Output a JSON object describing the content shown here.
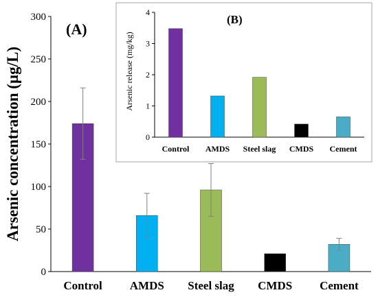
{
  "chart_data": [
    {
      "type": "bar",
      "panel_label": "(A)",
      "ylabel": "Arsenic concentration (µg/L)",
      "categories": [
        "Control",
        "AMDS",
        "Steel slag",
        "CMDS",
        "Cement"
      ],
      "values": [
        174,
        66,
        96,
        21,
        32
      ],
      "error": [
        42,
        26,
        31,
        0,
        7
      ],
      "colors": [
        "#7030a0",
        "#00b0f0",
        "#9bbb59",
        "#000000",
        "#4bacc6"
      ],
      "ylim": [
        0,
        300
      ],
      "yticks": [
        0,
        50,
        100,
        150,
        200,
        250,
        300
      ],
      "grid": false
    },
    {
      "type": "bar",
      "panel_label": "(B)",
      "ylabel": "Arsenic release (mg/kg)",
      "categories": [
        "Control",
        "AMDS",
        "Steel slag",
        "CMDS",
        "Cement"
      ],
      "values": [
        3.48,
        1.32,
        1.92,
        0.42,
        0.65
      ],
      "colors": [
        "#7030a0",
        "#00b0f0",
        "#9bbb59",
        "#000000",
        "#4bacc6"
      ],
      "ylim": [
        0,
        4
      ],
      "yticks": [
        0,
        1,
        2,
        3,
        4
      ],
      "grid": false
    }
  ]
}
